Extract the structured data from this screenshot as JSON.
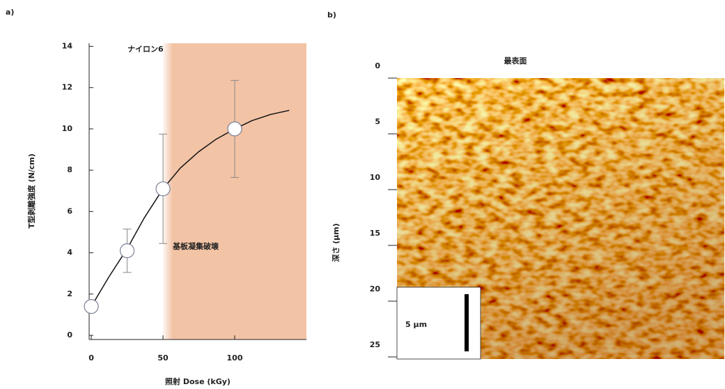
{
  "chart_data": [
    {
      "type": "scatter",
      "panel_label": "a)",
      "annotation": "ナイロン6",
      "region_label": "基板凝集破壊",
      "xlabel": "照射 Dose (kGy)",
      "ylabel": "T型剥離強度 (N/cm)",
      "x": [
        0,
        25,
        50,
        100
      ],
      "values": [
        1.4,
        4.1,
        7.1,
        10.0
      ],
      "errors": [
        null,
        1.05,
        2.65,
        2.35
      ],
      "curve": {
        "x": [
          0,
          12,
          25,
          37,
          50,
          62,
          75,
          87,
          100,
          112,
          125,
          138
        ],
        "values": [
          1.4,
          2.8,
          4.2,
          5.7,
          7.1,
          8.1,
          8.9,
          9.5,
          10.0,
          10.4,
          10.7,
          10.9
        ]
      },
      "shaded_region": [
        50,
        150
      ],
      "shade_color": "#f3c3a6",
      "marker_color": "#ffffff",
      "error_color": "#888888",
      "xlim": [
        -1.5,
        150
      ],
      "ylim": [
        -0.2,
        14.15
      ],
      "xticks": [
        0,
        50,
        100
      ],
      "yticks": [
        0,
        2,
        4,
        6,
        8,
        10,
        12,
        14
      ]
    },
    {
      "type": "image",
      "panel_label": "b)",
      "title": "最表面",
      "ylabel": "深さ (μm)",
      "ylim": [
        0,
        25
      ],
      "yticks": [
        0,
        5,
        10,
        15,
        20,
        25
      ],
      "scale_bar_label": "5 μm"
    }
  ]
}
